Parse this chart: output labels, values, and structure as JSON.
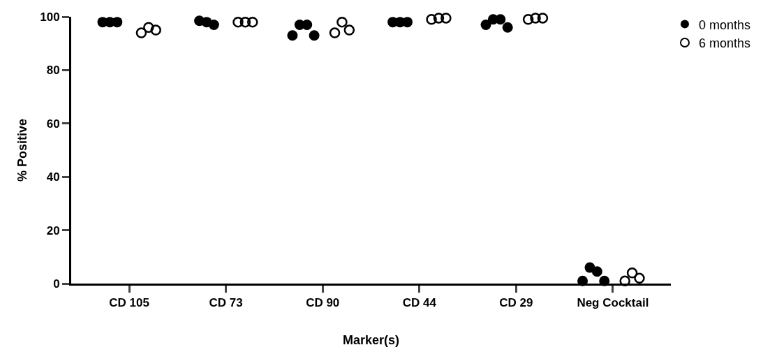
{
  "chart_data": {
    "type": "scatter",
    "xlabel": "Marker(s)",
    "ylabel": "% Positive",
    "categories": [
      "CD 105",
      "CD 73",
      "CD 90",
      "CD 44",
      "CD 29",
      "Neg Cocktail"
    ],
    "series": [
      {
        "name": "0 months",
        "color": "#000000",
        "x": [
          "CD 105",
          "CD 105",
          "CD 105",
          "CD 73",
          "CD 73",
          "CD 73",
          "CD 90",
          "CD 90",
          "CD 90",
          "CD 90",
          "CD 44",
          "CD 44",
          "CD 44",
          "CD 29",
          "CD 29",
          "CD 29",
          "CD 29",
          "Neg Cocktail",
          "Neg Cocktail",
          "Neg Cocktail",
          "Neg Cocktail"
        ],
        "values": [
          98,
          98,
          98,
          98.5,
          98,
          97,
          93,
          97,
          97,
          93,
          98,
          98,
          98,
          97,
          99,
          99,
          96,
          1,
          6,
          4.5,
          1
        ]
      },
      {
        "name": "6 months",
        "color": "#000000",
        "marker": "circle-open",
        "x": [
          "CD 105",
          "CD 105",
          "CD 105",
          "CD 73",
          "CD 73",
          "CD 73",
          "CD 90",
          "CD 90",
          "CD 90",
          "CD 44",
          "CD 44",
          "CD 44",
          "CD 29",
          "CD 29",
          "CD 29",
          "Neg Cocktail",
          "Neg Cocktail",
          "Neg Cocktail"
        ],
        "values": [
          94,
          96,
          95,
          98,
          98,
          98,
          94,
          98,
          95,
          99,
          99.5,
          99.5,
          99,
          99.5,
          99.5,
          1,
          4,
          2
        ]
      }
    ],
    "ylim": [
      0,
      100
    ],
    "yticks": [
      0,
      20,
      40,
      60,
      80,
      100
    ],
    "grid": false,
    "legend": "top right",
    "marker": "circle"
  }
}
